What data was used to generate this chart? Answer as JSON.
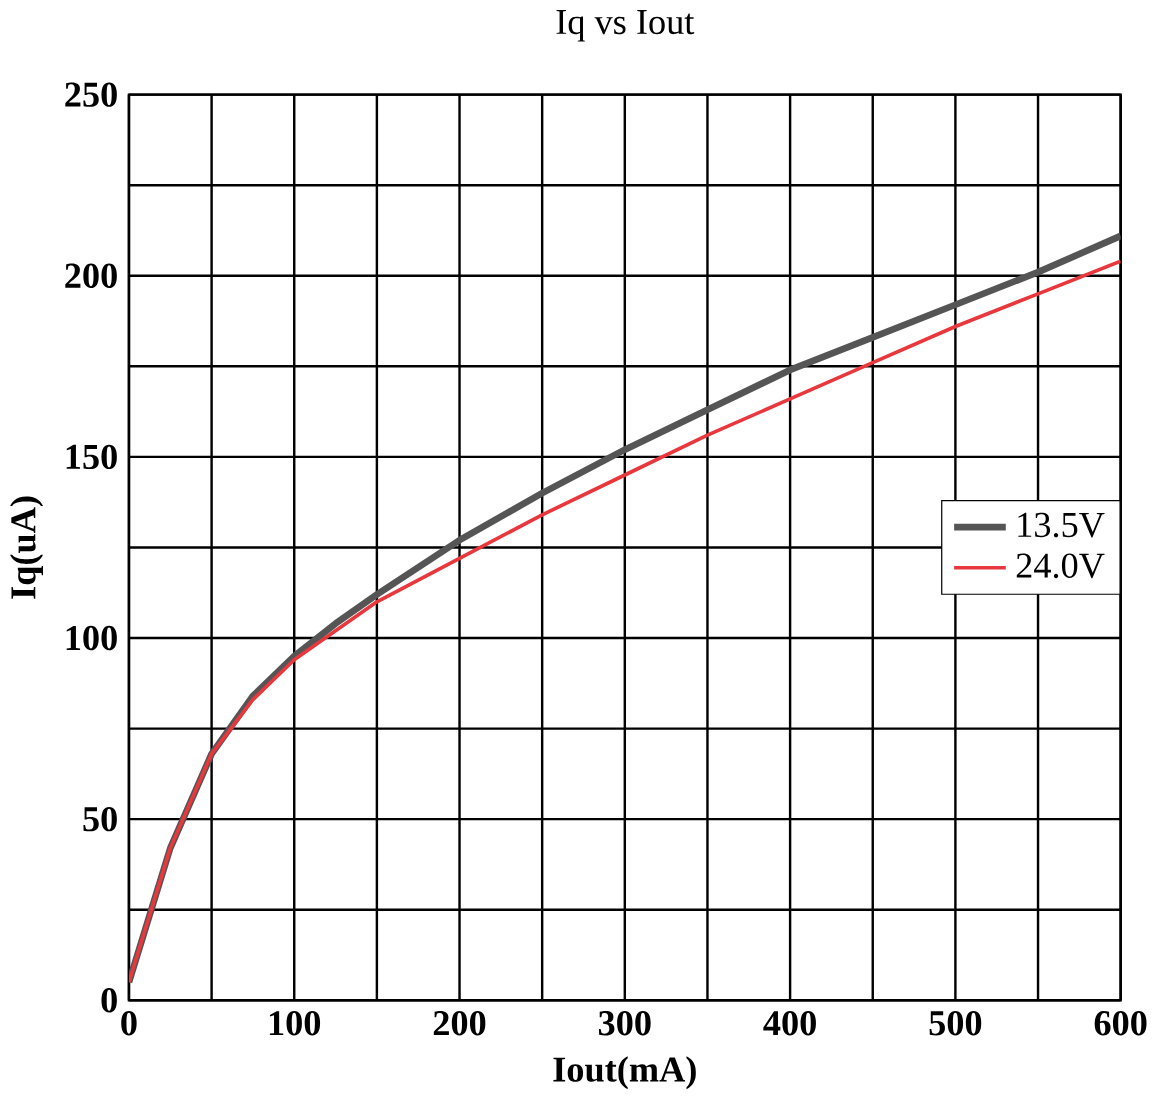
{
  "chart_data": {
    "type": "line",
    "title": "Iq vs Iout",
    "xlabel": "Iout(mA)",
    "ylabel": "Iq(uA)",
    "xlim": [
      0,
      600
    ],
    "ylim": [
      0,
      250
    ],
    "xticks": [
      0,
      {
        "value": 50,
        "label": null
      },
      100,
      {
        "value": 150,
        "label": null
      },
      200,
      {
        "value": 250,
        "label": null
      },
      300,
      {
        "value": 350,
        "label": null
      },
      400,
      {
        "value": 450,
        "label": null
      },
      500,
      {
        "value": 550,
        "label": null
      },
      600
    ],
    "yticks": [
      0,
      {
        "value": 25,
        "label": null
      },
      50,
      {
        "value": 75,
        "label": null
      },
      100,
      {
        "value": 125,
        "label": null
      },
      150,
      {
        "value": 175,
        "label": null
      },
      200,
      {
        "value": 225,
        "label": null
      },
      250
    ],
    "grid": true,
    "legend": "right",
    "line_style": "solid",
    "marker": "none",
    "x": [
      0,
      25,
      50,
      75,
      100,
      125,
      150,
      200,
      250,
      300,
      350,
      400,
      450,
      500,
      550,
      600
    ],
    "series": [
      {
        "name": "13.5V",
        "color": "#555555",
        "values": [
          5,
          42,
          68,
          84,
          95,
          104,
          112,
          127,
          140,
          152,
          163,
          174,
          183,
          192,
          201,
          211
        ]
      },
      {
        "name": "24.0V",
        "color": "#e8383d",
        "values": [
          5,
          42,
          68,
          83,
          94,
          102,
          110,
          122,
          134,
          145,
          156,
          166,
          176,
          186,
          195,
          204
        ]
      }
    ]
  }
}
